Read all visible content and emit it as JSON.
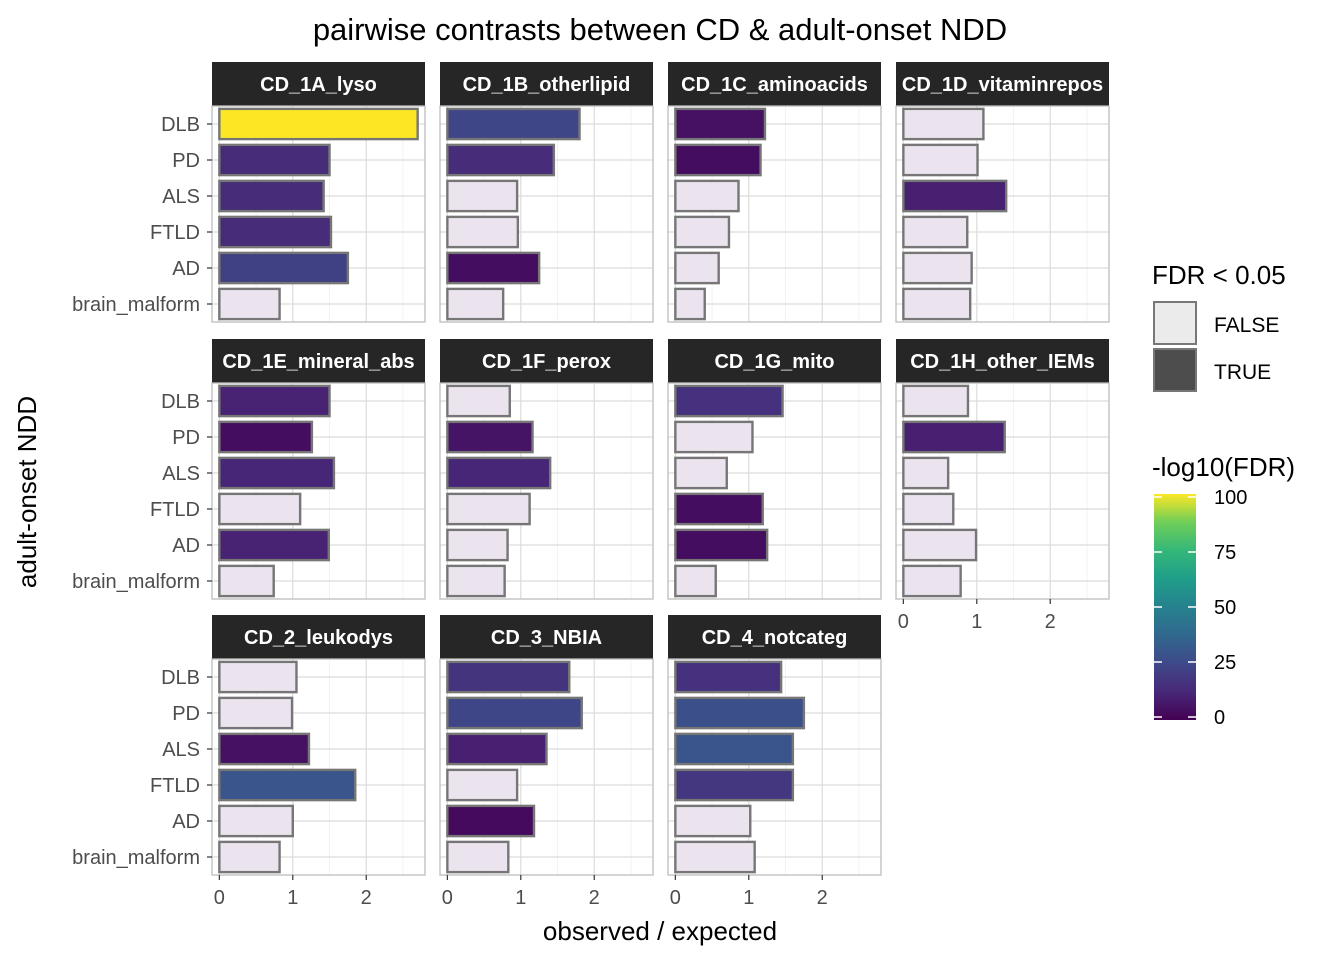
{
  "chart_data": {
    "type": "bar",
    "orientation": "horizontal",
    "title": "pairwise contrasts between CD & adult-onset NDD",
    "xlabel": "observed / expected",
    "ylabel": "adult-onset NDD",
    "categories": [
      "DLB",
      "PD",
      "ALS",
      "FTLD",
      "AD",
      "brain_malform"
    ],
    "xlim": [
      -0.1,
      2.8
    ],
    "xticks": [
      0,
      1,
      2
    ],
    "grid": true,
    "color_scale": {
      "name": "-log10(FDR)",
      "palette": "viridis",
      "limits": [
        0,
        100
      ],
      "ticks": [
        0,
        25,
        50,
        75,
        100
      ]
    },
    "legend": {
      "placement": "right",
      "fill_title": "FDR < 0.05",
      "fill_entries": [
        {
          "label": "FALSE",
          "color": "#ebebeb"
        },
        {
          "label": "TRUE",
          "color": "#4d4d4d"
        }
      ]
    },
    "false_fill": "#ebe4ef",
    "panels": [
      {
        "name": "CD_1A_lyso",
        "values": [
          2.7,
          1.5,
          1.42,
          1.52,
          1.75,
          0.82
        ],
        "fdr_sig": [
          true,
          true,
          true,
          true,
          true,
          false
        ],
        "neglog10_fdr": [
          102,
          14,
          14,
          14,
          22,
          0
        ]
      },
      {
        "name": "CD_1B_otherlipid",
        "values": [
          1.8,
          1.45,
          0.95,
          0.96,
          1.25,
          0.76
        ],
        "fdr_sig": [
          true,
          true,
          false,
          false,
          true,
          false
        ],
        "neglog10_fdr": [
          24,
          14,
          0,
          0,
          4,
          0
        ]
      },
      {
        "name": "CD_1C_aminoacids",
        "values": [
          1.22,
          1.16,
          0.86,
          0.73,
          0.59,
          0.4
        ],
        "fdr_sig": [
          true,
          true,
          false,
          false,
          false,
          false
        ],
        "neglog10_fdr": [
          5,
          4,
          0,
          0,
          0,
          0
        ]
      },
      {
        "name": "CD_1D_vitaminrepos",
        "values": [
          1.09,
          1.01,
          1.4,
          0.87,
          0.93,
          0.91
        ],
        "fdr_sig": [
          false,
          false,
          true,
          false,
          false,
          false
        ],
        "neglog10_fdr": [
          0,
          0,
          10,
          0,
          0,
          0
        ]
      },
      {
        "name": "CD_1E_mineral_abs",
        "values": [
          1.5,
          1.26,
          1.56,
          1.1,
          1.49,
          0.74
        ],
        "fdr_sig": [
          true,
          true,
          true,
          false,
          true,
          false
        ],
        "neglog10_fdr": [
          11,
          4,
          12,
          0,
          11,
          0
        ]
      },
      {
        "name": "CD_1F_perox",
        "values": [
          0.85,
          1.16,
          1.4,
          1.12,
          0.82,
          0.78
        ],
        "fdr_sig": [
          false,
          true,
          true,
          false,
          false,
          false
        ],
        "neglog10_fdr": [
          0,
          6,
          12,
          0,
          0,
          0
        ]
      },
      {
        "name": "CD_1G_mito",
        "values": [
          1.46,
          1.05,
          0.7,
          1.19,
          1.25,
          0.55
        ],
        "fdr_sig": [
          true,
          false,
          false,
          true,
          true,
          false
        ],
        "neglog10_fdr": [
          16,
          0,
          0,
          4,
          4,
          0
        ]
      },
      {
        "name": "CD_1H_other_IEMs",
        "values": [
          0.88,
          1.38,
          0.61,
          0.68,
          0.99,
          0.78
        ],
        "fdr_sig": [
          false,
          true,
          false,
          false,
          false,
          false
        ],
        "neglog10_fdr": [
          0,
          10,
          0,
          0,
          0,
          0
        ]
      },
      {
        "name": "CD_2_leukodys",
        "values": [
          1.05,
          0.99,
          1.22,
          1.85,
          1.0,
          0.82
        ],
        "fdr_sig": [
          false,
          false,
          true,
          true,
          false,
          false
        ],
        "neglog10_fdr": [
          0,
          0,
          5,
          30,
          0,
          0
        ]
      },
      {
        "name": "CD_3_NBIA",
        "values": [
          1.66,
          1.83,
          1.35,
          0.95,
          1.18,
          0.83
        ],
        "fdr_sig": [
          true,
          true,
          true,
          false,
          true,
          false
        ],
        "neglog10_fdr": [
          17,
          24,
          10,
          0,
          3,
          0
        ]
      },
      {
        "name": "CD_4_notcateg",
        "values": [
          1.44,
          1.75,
          1.6,
          1.6,
          1.02,
          1.08
        ],
        "fdr_sig": [
          true,
          true,
          true,
          true,
          false,
          false
        ],
        "neglog10_fdr": [
          16,
          28,
          30,
          18,
          0,
          0
        ]
      }
    ]
  }
}
